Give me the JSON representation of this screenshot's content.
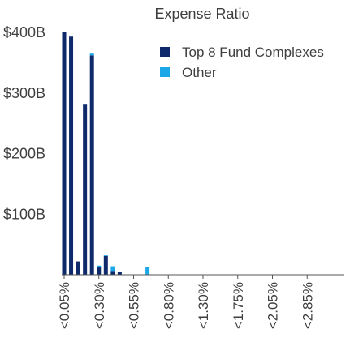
{
  "chart_data": {
    "type": "bar",
    "stacked": true,
    "title": "Expense Ratio",
    "xlabel": "",
    "ylabel": "",
    "ylim": [
      0,
      400
    ],
    "y_unit": "$B",
    "y_ticks": [
      {
        "value": 100,
        "label": "$100B"
      },
      {
        "value": 200,
        "label": "$200B"
      },
      {
        "value": 300,
        "label": "$300B"
      },
      {
        "value": 400,
        "label": "$400B"
      }
    ],
    "x_tick_labels": [
      {
        "bin": 0,
        "label": "<0.05%"
      },
      {
        "bin": 5,
        "label": "<0.30%"
      },
      {
        "bin": 10,
        "label": "<0.55%"
      },
      {
        "bin": 15,
        "label": "<0.80%"
      },
      {
        "bin": 20,
        "label": "<1.30%"
      },
      {
        "bin": 25,
        "label": "<1.75%"
      },
      {
        "bin": 30,
        "label": "<2.05%"
      },
      {
        "bin": 35,
        "label": "<2.85%"
      }
    ],
    "bin_count": 38,
    "grid": false,
    "legend_position": "top-right",
    "series": [
      {
        "name": "Top 8 Fund Complexes",
        "color": "#0f2a6b",
        "values": [
          400,
          393,
          22,
          282,
          362,
          12,
          31,
          5,
          4,
          0,
          0,
          0,
          0,
          0,
          0,
          0,
          0,
          0,
          0,
          0,
          0,
          0,
          0,
          0,
          0,
          0,
          0,
          0,
          0,
          0,
          0,
          0,
          0,
          0,
          0,
          0,
          0,
          0
        ]
      },
      {
        "name": "Other",
        "color": "#1ca7e8",
        "values": [
          0,
          0,
          0,
          0,
          3,
          3,
          1,
          9,
          0,
          0,
          0,
          0,
          12,
          0,
          0,
          0,
          0,
          0,
          0,
          0,
          0,
          0,
          0,
          0,
          0,
          0,
          0,
          0,
          0,
          0,
          0,
          0,
          0,
          0,
          0,
          0,
          0,
          0
        ]
      }
    ]
  }
}
